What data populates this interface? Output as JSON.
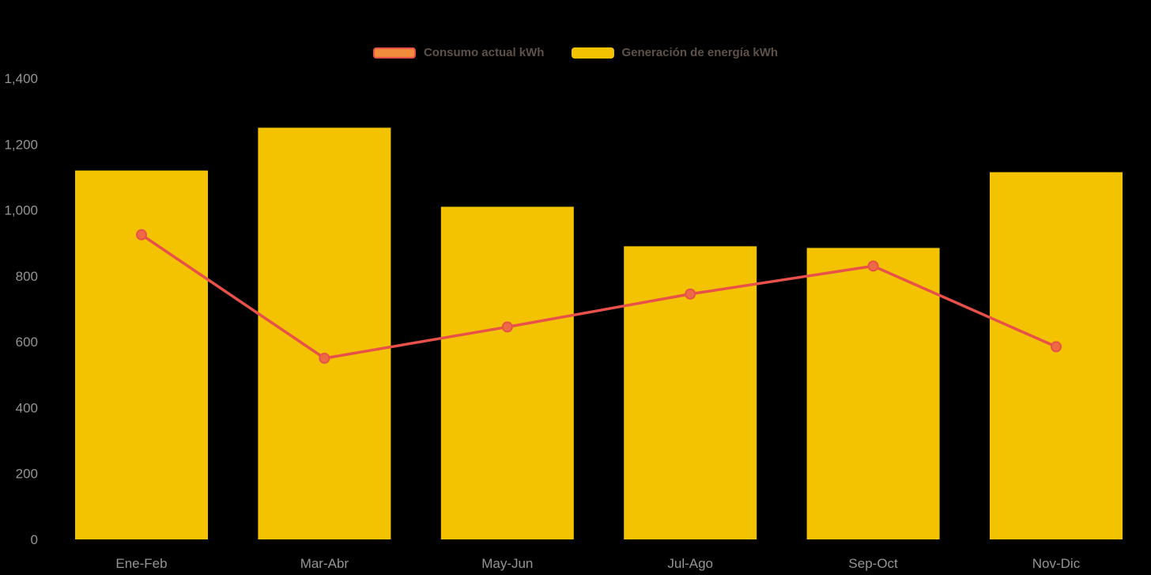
{
  "page": {
    "background_color": "#000000"
  },
  "legend": {
    "text_color": "#5e5147",
    "items": [
      {
        "label": "Consumo actual kWh",
        "type": "line",
        "fill": "#F08C3C",
        "border": "#E8514A"
      },
      {
        "label": "Generación de energía kWh",
        "type": "bar",
        "fill": "#F3C301",
        "border": "#F3C301"
      }
    ]
  },
  "chart_data": {
    "type": "bar+line",
    "title": "",
    "xlabel": "",
    "ylabel": "",
    "categories": [
      "Ene-Feb",
      "Mar-Abr",
      "May-Jun",
      "Jul-Ago",
      "Sep-Oct",
      "Nov-Dic"
    ],
    "series": [
      {
        "name": "Generación de energía kWh",
        "type": "bar",
        "color": "#F3C301",
        "values": [
          1120,
          1250,
          1010,
          890,
          885,
          1115
        ]
      },
      {
        "name": "Consumo actual kWh",
        "type": "line",
        "color": "#E8514A",
        "marker_fill": "#ED6A45",
        "values": [
          925,
          550,
          645,
          745,
          830,
          585
        ]
      }
    ],
    "ylim": [
      0,
      1400
    ],
    "yticks": [
      0,
      200,
      400,
      600,
      800,
      1000,
      1200,
      1400
    ],
    "ytick_labels": [
      "0",
      "200",
      "400",
      "600",
      "800",
      "1,000",
      "1,200",
      "1,400"
    ],
    "axis_text_color": "#949494",
    "grid": false,
    "legend_position": "top-center"
  }
}
